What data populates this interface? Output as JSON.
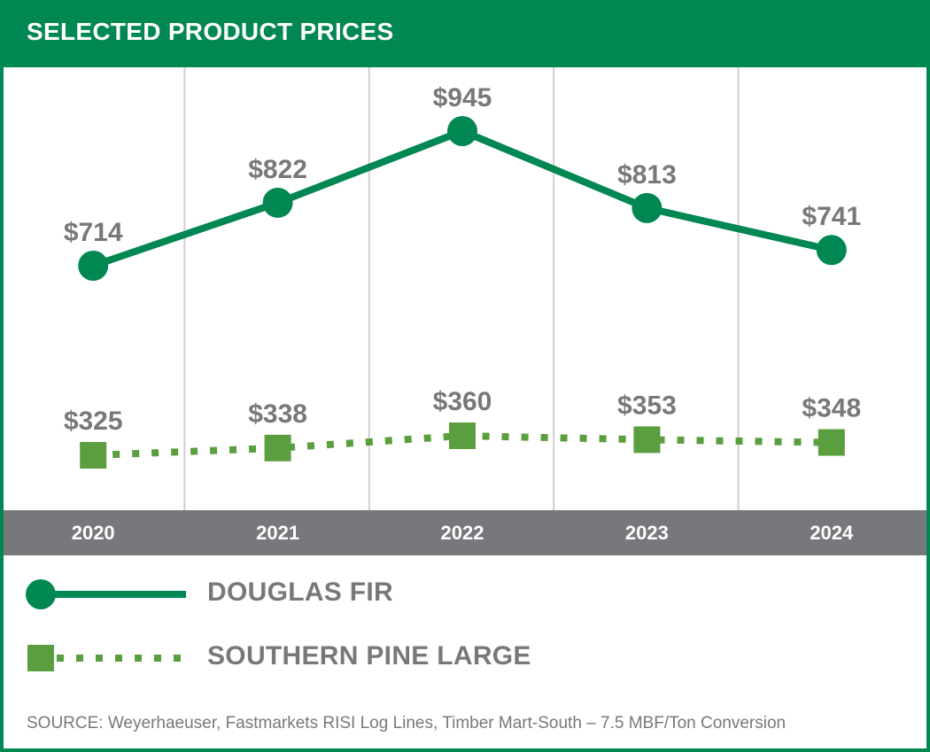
{
  "title": "SELECTED PRODUCT PRICES",
  "colors": {
    "brand_green": "#008752",
    "light_green": "#5a9e3f",
    "axis_band": "#77787b",
    "label_gray": "#77787b"
  },
  "legend": {
    "douglas_fir": "DOUGLAS FIR",
    "southern_pine": "SOUTHERN PINE LARGE"
  },
  "source": "SOURCE: Weyerhaeuser, Fastmarkets RISI Log Lines, Timber Mart-South – 7.5 MBF/Ton Conversion",
  "chart_data": {
    "type": "line",
    "title": "SELECTED PRODUCT PRICES",
    "categories": [
      "2020",
      "2021",
      "2022",
      "2023",
      "2024"
    ],
    "series": [
      {
        "name": "DOUGLAS FIR",
        "values": [
          714,
          822,
          945,
          813,
          741
        ],
        "labels": [
          "$714",
          "$822",
          "$945",
          "$813",
          "$741"
        ],
        "marker": "circle",
        "line": "solid",
        "color": "#008752"
      },
      {
        "name": "SOUTHERN PINE LARGE",
        "values": [
          325,
          338,
          360,
          353,
          348
        ],
        "labels": [
          "$325",
          "$338",
          "$360",
          "$353",
          "$348"
        ],
        "marker": "square",
        "line": "dotted",
        "color": "#5a9e3f"
      }
    ],
    "xlabel": "",
    "ylabel": "",
    "grid": "vertical",
    "legend_position": "bottom-left"
  }
}
